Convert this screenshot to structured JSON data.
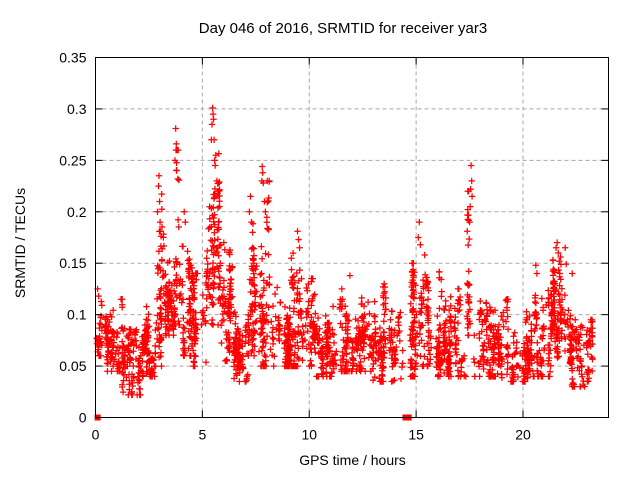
{
  "chart_data": {
    "type": "scatter",
    "title": "Day 046 of 2016, SRMTID for receiver yar3",
    "xlabel": "GPS time / hours",
    "ylabel": "SRMTID / TECUs",
    "xlim": [
      0,
      24
    ],
    "ylim": [
      0,
      0.35
    ],
    "xticks": [
      0,
      5,
      10,
      15,
      20
    ],
    "xtick_labels": [
      "0",
      "5",
      "10",
      "15",
      "20"
    ],
    "yticks": [
      0,
      0.05,
      0.1,
      0.15,
      0.2,
      0.25,
      0.3,
      0.35
    ],
    "ytick_labels": [
      "0",
      "0.05",
      "0.1",
      "0.15",
      "0.2",
      "0.25",
      "0.3",
      "0.35"
    ],
    "grid": true,
    "legend": "none",
    "marker": "plus",
    "marker_color": "#ff0000",
    "grid_color": "#a8a8a8",
    "axis_color": "#000000",
    "series": [
      {
        "name": "SRMTID",
        "description": "Dense scatter of ~2700 red plus markers; envelope estimated from pixels as hourly density bands plus explicit peak points.",
        "density_bands": {
          "columns": [
            "from_hour",
            "to_hour",
            "min_value",
            "max_value",
            "approx_points"
          ],
          "rows": [
            [
              0.02,
              0.3,
              0.06,
              0.125,
              28
            ],
            [
              0.3,
              1.25,
              0.045,
              0.115,
              95
            ],
            [
              1.25,
              2.2,
              0.022,
              0.095,
              105
            ],
            [
              2.2,
              2.85,
              0.04,
              0.11,
              85
            ],
            [
              2.85,
              3.2,
              0.05,
              0.22,
              55
            ],
            [
              3.2,
              3.65,
              0.08,
              0.16,
              70
            ],
            [
              3.65,
              4.1,
              0.09,
              0.26,
              50
            ],
            [
              4.1,
              4.55,
              0.06,
              0.19,
              70
            ],
            [
              4.55,
              5.2,
              0.05,
              0.14,
              75
            ],
            [
              5.2,
              5.8,
              0.09,
              0.285,
              90
            ],
            [
              5.8,
              6.4,
              0.055,
              0.17,
              85
            ],
            [
              6.4,
              7.15,
              0.035,
              0.12,
              95
            ],
            [
              7.15,
              7.65,
              0.06,
              0.2,
              70
            ],
            [
              7.65,
              8.15,
              0.05,
              0.23,
              75
            ],
            [
              8.15,
              9.15,
              0.05,
              0.155,
              110
            ],
            [
              9.15,
              10.1,
              0.05,
              0.17,
              100
            ],
            [
              10.1,
              11.4,
              0.04,
              0.135,
              140
            ],
            [
              11.4,
              12.9,
              0.045,
              0.125,
              160
            ],
            [
              12.9,
              14.4,
              0.035,
              0.13,
              150
            ],
            [
              14.4,
              15.05,
              0.04,
              0.15,
              80
            ],
            [
              15.05,
              15.6,
              0.05,
              0.175,
              60
            ],
            [
              15.6,
              16.4,
              0.04,
              0.145,
              85
            ],
            [
              16.4,
              17.35,
              0.04,
              0.125,
              90
            ],
            [
              17.35,
              17.7,
              0.08,
              0.22,
              35
            ],
            [
              17.7,
              18.9,
              0.04,
              0.125,
              125
            ],
            [
              18.9,
              20.4,
              0.035,
              0.115,
              135
            ],
            [
              20.4,
              21.4,
              0.04,
              0.13,
              105
            ],
            [
              21.4,
              22.2,
              0.05,
              0.165,
              95
            ],
            [
              22.2,
              22.95,
              0.03,
              0.13,
              85
            ],
            [
              22.95,
              23.25,
              0.035,
              0.095,
              40
            ]
          ]
        },
        "peak_points": {
          "columns": [
            "hour",
            "value"
          ],
          "rows": [
            [
              0.1,
              0.125
            ],
            [
              0.15,
              0.118
            ],
            [
              2.9,
              0.2
            ],
            [
              2.95,
              0.225
            ],
            [
              2.97,
              0.235
            ],
            [
              3.0,
              0.21
            ],
            [
              3.02,
              0.19
            ],
            [
              3.72,
              0.25
            ],
            [
              3.75,
              0.281
            ],
            [
              3.78,
              0.266
            ],
            [
              3.8,
              0.24
            ],
            [
              3.85,
              0.232
            ],
            [
              4.15,
              0.2
            ],
            [
              4.2,
              0.19
            ],
            [
              5.42,
              0.27
            ],
            [
              5.45,
              0.285
            ],
            [
              5.48,
              0.301
            ],
            [
              5.5,
              0.295
            ],
            [
              5.52,
              0.29
            ],
            [
              5.55,
              0.27
            ],
            [
              5.57,
              0.25
            ],
            [
              5.6,
              0.245
            ],
            [
              5.63,
              0.255
            ],
            [
              5.68,
              0.23
            ],
            [
              5.72,
              0.218
            ],
            [
              6.0,
              0.17
            ],
            [
              6.05,
              0.163
            ],
            [
              7.2,
              0.2
            ],
            [
              7.25,
              0.215
            ],
            [
              7.3,
              0.19
            ],
            [
              7.35,
              0.18
            ],
            [
              7.78,
              0.23
            ],
            [
              7.8,
              0.244
            ],
            [
              7.82,
              0.238
            ],
            [
              7.85,
              0.228
            ],
            [
              7.9,
              0.21
            ],
            [
              7.95,
              0.2
            ],
            [
              9.45,
              0.181
            ],
            [
              9.5,
              0.173
            ],
            [
              9.55,
              0.165
            ],
            [
              11.9,
              0.138
            ],
            [
              15.1,
              0.175
            ],
            [
              15.15,
              0.19
            ],
            [
              15.2,
              0.168
            ],
            [
              15.4,
              0.158
            ],
            [
              17.5,
              0.19
            ],
            [
              17.53,
              0.205
            ],
            [
              17.55,
              0.222
            ],
            [
              17.57,
              0.245
            ],
            [
              17.6,
              0.23
            ],
            [
              17.62,
              0.215
            ],
            [
              20.6,
              0.148
            ],
            [
              20.65,
              0.14
            ],
            [
              21.55,
              0.165
            ],
            [
              21.6,
              0.17
            ],
            [
              21.65,
              0.16
            ],
            [
              21.7,
              0.152
            ],
            [
              22.3,
              0.14
            ]
          ]
        },
        "zero_value_points_hours": [
          0.1,
          14.5,
          14.65
        ]
      }
    ]
  }
}
